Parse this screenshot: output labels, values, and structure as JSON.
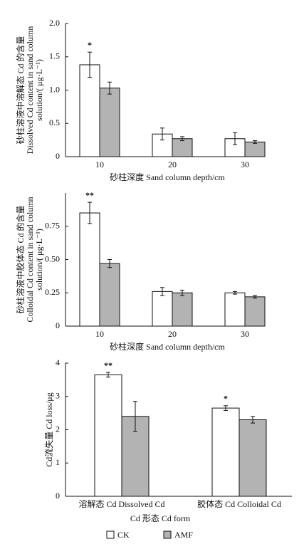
{
  "chart_data": [
    {
      "type": "bar",
      "ylabel": [
        "砂柱溶液中溶解态 Cd 的含量",
        "Dissolved Cd content in sand column",
        "solution/( μg·L⁻¹)"
      ],
      "xlabel": "砂柱深度 Sand column depth/cm",
      "categories": [
        "10",
        "20",
        "30"
      ],
      "series": [
        {
          "color": "#ffffff",
          "values": [
            1.38,
            0.34,
            0.27
          ],
          "errors": [
            0.19,
            0.09,
            0.09
          ],
          "significance": [
            "*",
            null,
            null
          ]
        },
        {
          "color": "#b3b3b3",
          "values": [
            1.03,
            0.27,
            0.22
          ],
          "errors": [
            0.09,
            0.03,
            0.02
          ]
        }
      ],
      "ylim": [
        0,
        2
      ],
      "yticks": [
        0,
        0.5,
        {
          "value": 1,
          "label": "1.0"
        },
        1.5,
        {
          "value": 2,
          "label": "2.0"
        }
      ]
    },
    {
      "type": "bar",
      "ylabel": [
        "砂柱溶液中胶体态 Cd 的含量",
        "Colloidal Cd content in sand column",
        "solution/( μg·L⁻¹)"
      ],
      "xlabel": "砂柱深度 Sand column depth/cm",
      "categories": [
        "10",
        "20",
        "30"
      ],
      "series": [
        {
          "color": "#ffffff",
          "values": [
            0.85,
            0.26,
            0.25
          ],
          "errors": [
            0.08,
            0.03,
            0.01
          ],
          "significance": [
            "**",
            null,
            null
          ]
        },
        {
          "color": "#b3b3b3",
          "values": [
            0.47,
            0.25,
            0.22
          ],
          "errors": [
            0.03,
            0.02,
            0.01
          ]
        }
      ],
      "ylim": [
        0,
        1
      ],
      "yticks": [
        0,
        0.25,
        {
          "value": 0.5,
          "label": "0.50"
        },
        0.75
      ]
    },
    {
      "type": "bar",
      "ylabel": [
        "Cd流失量 Cd loss/μg"
      ],
      "xlabel": "Cd 形态  Cd form",
      "categories": [
        "溶解态 Cd Dissolved Cd",
        "胶体态 Cd Colloidal Cd"
      ],
      "series": [
        {
          "color": "#ffffff",
          "values": [
            3.65,
            2.65
          ],
          "errors": [
            0.07,
            0.07
          ],
          "significance": [
            "**",
            "*"
          ]
        },
        {
          "color": "#b3b3b3",
          "values": [
            2.4,
            2.3
          ],
          "errors": [
            0.45,
            0.1
          ]
        }
      ],
      "ylim": [
        0,
        4
      ],
      "yticks": [
        0,
        1,
        2,
        3,
        4
      ]
    }
  ],
  "legend": [
    {
      "name": "CK",
      "color": "#ffffff"
    },
    {
      "name": "AMF",
      "color": "#b3b3b3"
    }
  ]
}
